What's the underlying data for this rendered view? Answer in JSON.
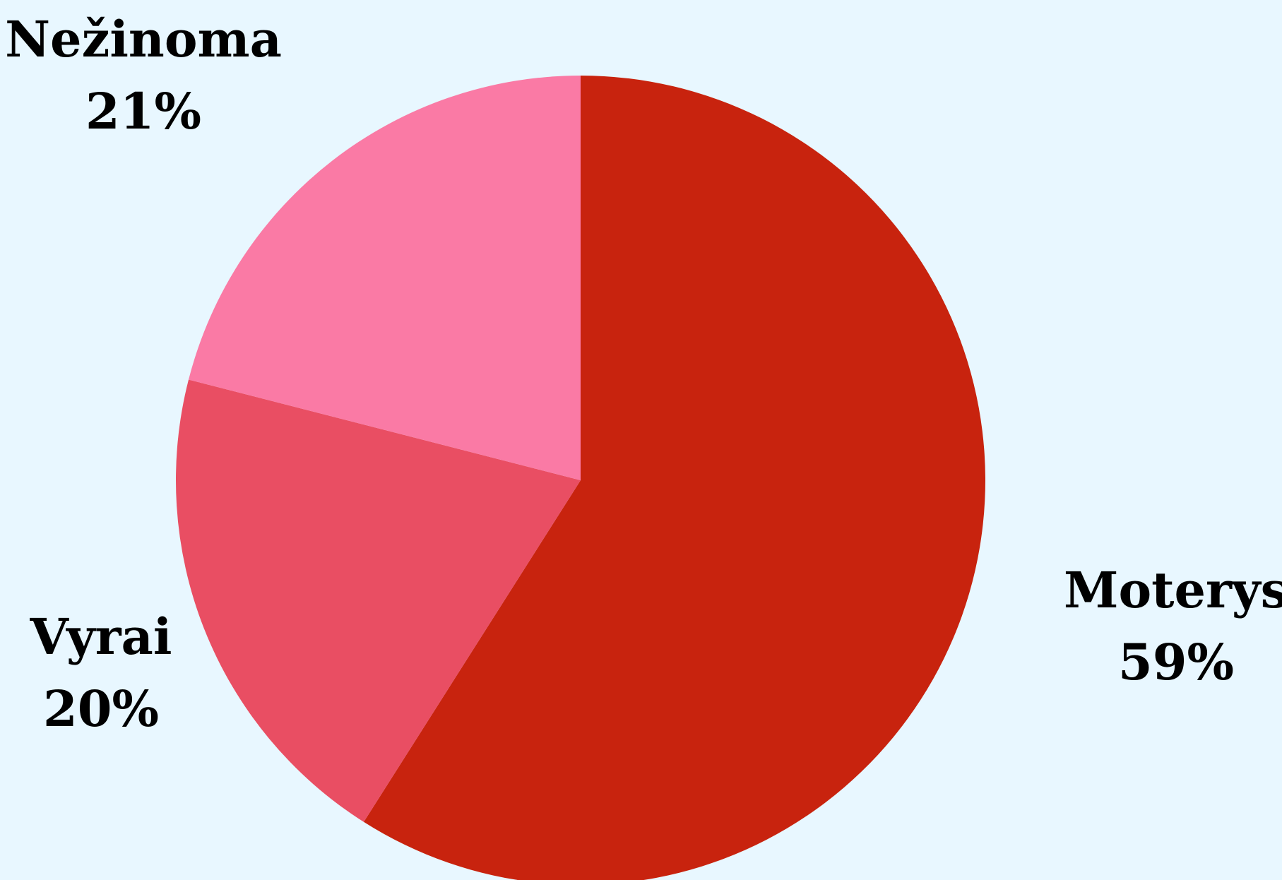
{
  "chart_data": {
    "type": "pie",
    "title": "",
    "start_angle_deg": 0,
    "direction": "clockwise",
    "slices": [
      {
        "label": "Moterys",
        "value": 59,
        "value_label": "59%",
        "color": "#c8230e"
      },
      {
        "label": "Vyrai",
        "value": 20,
        "value_label": "20%",
        "color": "#e94e63"
      },
      {
        "label": "Nežinoma",
        "value": 21,
        "value_label": "21%",
        "color": "#fa7aa5"
      }
    ]
  },
  "colors": {
    "background": "#e8f7ff",
    "label_text": "#000000"
  }
}
